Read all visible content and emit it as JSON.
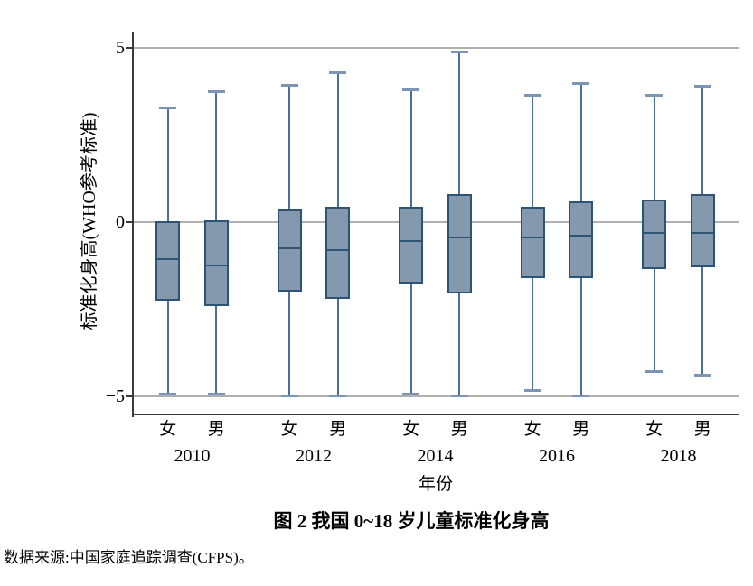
{
  "figure": {
    "title": "图 2  我国 0~18 岁儿童标准化身高",
    "source_note": "数据来源:中国家庭追踪调查(CFPS)。"
  },
  "chart_data": {
    "type": "boxplot",
    "title": "图 2  我国 0~18 岁儿童标准化身高",
    "xlabel": "年份",
    "ylabel": "标准化身高(WHO参考标准)",
    "ylim": [
      -5.5,
      5.5
    ],
    "yticks": [
      5,
      0,
      -5
    ],
    "ytick_labels": [
      "5",
      "0",
      "−5"
    ],
    "grid": "horizontal gridlines at y = 5, 0, -5; no right or top frame",
    "legend": "none",
    "groups": [
      "2010",
      "2012",
      "2014",
      "2016",
      "2018"
    ],
    "series_labels": [
      "女",
      "男"
    ],
    "boxes": [
      {
        "year": "2010",
        "sex": "女",
        "whisker_low": -4.95,
        "q1": -2.25,
        "median": -1.05,
        "q3": 0.02,
        "whisker_high": 3.3
      },
      {
        "year": "2010",
        "sex": "男",
        "whisker_low": -4.95,
        "q1": -2.4,
        "median": -1.25,
        "q3": 0.05,
        "whisker_high": 3.75
      },
      {
        "year": "2012",
        "sex": "女",
        "whisker_low": -5.0,
        "q1": -2.0,
        "median": -0.75,
        "q3": 0.35,
        "whisker_high": 3.95
      },
      {
        "year": "2012",
        "sex": "男",
        "whisker_low": -5.0,
        "q1": -2.2,
        "median": -0.8,
        "q3": 0.45,
        "whisker_high": 4.3
      },
      {
        "year": "2014",
        "sex": "女",
        "whisker_low": -4.95,
        "q1": -1.75,
        "median": -0.55,
        "q3": 0.45,
        "whisker_high": 3.8
      },
      {
        "year": "2014",
        "sex": "男",
        "whisker_low": -5.0,
        "q1": -2.05,
        "median": -0.45,
        "q3": 0.8,
        "whisker_high": 4.9
      },
      {
        "year": "2016",
        "sex": "女",
        "whisker_low": -4.85,
        "q1": -1.6,
        "median": -0.45,
        "q3": 0.45,
        "whisker_high": 3.65
      },
      {
        "year": "2016",
        "sex": "男",
        "whisker_low": -5.0,
        "q1": -1.6,
        "median": -0.4,
        "q3": 0.6,
        "whisker_high": 4.0
      },
      {
        "year": "2018",
        "sex": "女",
        "whisker_low": -4.3,
        "q1": -1.35,
        "median": -0.3,
        "q3": 0.65,
        "whisker_high": 3.65
      },
      {
        "year": "2018",
        "sex": "男",
        "whisker_low": -4.4,
        "q1": -1.3,
        "median": -0.3,
        "q3": 0.8,
        "whisker_high": 3.9
      }
    ],
    "colors": {
      "box_fill": "#8499ad",
      "box_border": "#2d5475",
      "median_line": "#2d5475",
      "whisker_stem": "#4a6f9b",
      "whisker_cap": "#7b96b4",
      "gridline": "#b0b0b0",
      "axis": "#3a3a3a",
      "text": "#000000"
    }
  }
}
